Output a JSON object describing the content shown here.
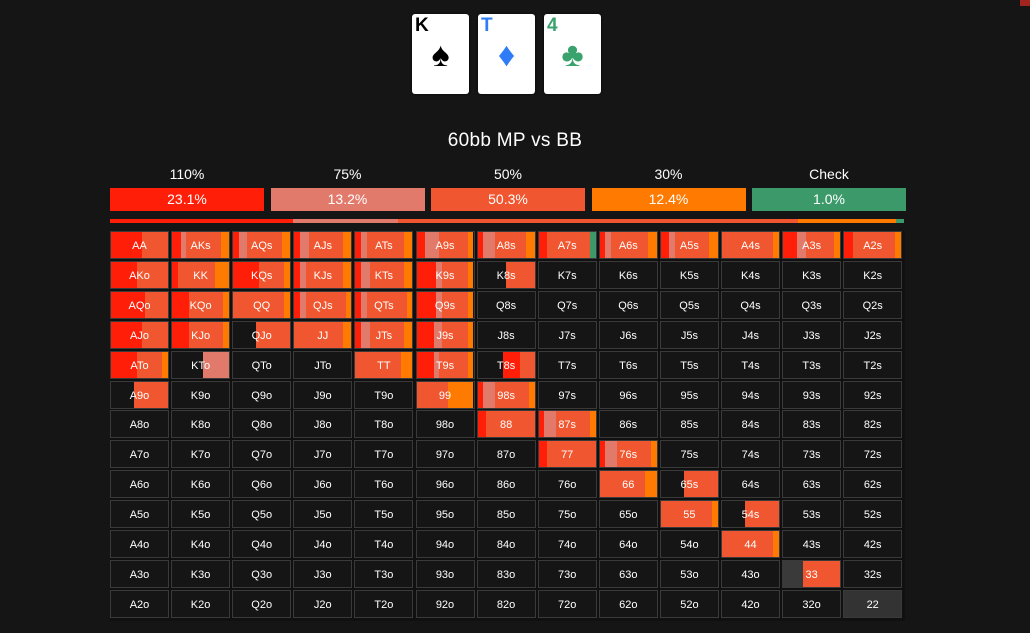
{
  "board": {
    "cards": [
      {
        "rank": "K",
        "suit_icon": "spade-icon",
        "suit_glyph": "♠",
        "color": "#000000"
      },
      {
        "rank": "T",
        "suit_icon": "diamond-icon",
        "suit_glyph": "♦",
        "color": "#2f7cf6"
      },
      {
        "rank": "4",
        "suit_icon": "club-icon",
        "suit_glyph": "♣",
        "color": "#3aa26c"
      }
    ]
  },
  "title": "60bb MP vs BB",
  "actions": [
    {
      "label": "110%",
      "freq": "23.1%",
      "color": "#ff1e08"
    },
    {
      "label": "75%",
      "freq": "13.2%",
      "color": "#e27a6c"
    },
    {
      "label": "50%",
      "freq": "50.3%",
      "color": "#f0562f"
    },
    {
      "label": "30%",
      "freq": "12.4%",
      "color": "#ff7a00"
    },
    {
      "label": "Check",
      "freq": "1.0%",
      "color": "#3c9a6a"
    }
  ],
  "grid": {
    "rows": [
      [
        "AA",
        "AKs",
        "AQs",
        "AJs",
        "ATs",
        "A9s",
        "A8s",
        "A7s",
        "A6s",
        "A5s",
        "A4s",
        "A3s",
        "A2s"
      ],
      [
        "AKo",
        "KK",
        "KQs",
        "KJs",
        "KTs",
        "K9s",
        "K8s",
        "K7s",
        "K6s",
        "K5s",
        "K4s",
        "K3s",
        "K2s"
      ],
      [
        "AQo",
        "KQo",
        "QQ",
        "QJs",
        "QTs",
        "Q9s",
        "Q8s",
        "Q7s",
        "Q6s",
        "Q5s",
        "Q4s",
        "Q3s",
        "Q2s"
      ],
      [
        "AJo",
        "KJo",
        "QJo",
        "JJ",
        "JTs",
        "J9s",
        "J8s",
        "J7s",
        "J6s",
        "J5s",
        "J4s",
        "J3s",
        "J2s"
      ],
      [
        "ATo",
        "KTo",
        "QTo",
        "JTo",
        "TT",
        "T9s",
        "T8s",
        "T7s",
        "T6s",
        "T5s",
        "T4s",
        "T3s",
        "T2s"
      ],
      [
        "A9o",
        "K9o",
        "Q9o",
        "J9o",
        "T9o",
        "99",
        "98s",
        "97s",
        "96s",
        "95s",
        "94s",
        "93s",
        "92s"
      ],
      [
        "A8o",
        "K8o",
        "Q8o",
        "J8o",
        "T8o",
        "98o",
        "88",
        "87s",
        "86s",
        "85s",
        "84s",
        "83s",
        "82s"
      ],
      [
        "A7o",
        "K7o",
        "Q7o",
        "J7o",
        "T7o",
        "97o",
        "87o",
        "77",
        "76s",
        "75s",
        "74s",
        "73s",
        "72s"
      ],
      [
        "A6o",
        "K6o",
        "Q6o",
        "J6o",
        "T6o",
        "96o",
        "86o",
        "76o",
        "66",
        "65s",
        "64s",
        "63s",
        "62s"
      ],
      [
        "A5o",
        "K5o",
        "Q5o",
        "J5o",
        "T5o",
        "95o",
        "85o",
        "75o",
        "65o",
        "55",
        "54s",
        "53s",
        "52s"
      ],
      [
        "A4o",
        "K4o",
        "Q4o",
        "J4o",
        "T4o",
        "94o",
        "84o",
        "74o",
        "64o",
        "54o",
        "44",
        "43s",
        "42s"
      ],
      [
        "A3o",
        "K3o",
        "Q3o",
        "J3o",
        "T3o",
        "93o",
        "83o",
        "73o",
        "63o",
        "53o",
        "43o",
        "33",
        "32s"
      ],
      [
        "A2o",
        "K2o",
        "Q2o",
        "J2o",
        "T2o",
        "92o",
        "82o",
        "72o",
        "62o",
        "52o",
        "42o",
        "32o",
        "22"
      ]
    ],
    "mixes": {
      "AA": [
        [
          "#ff1e08",
          0.55
        ],
        [
          "#f0562f",
          0.45
        ]
      ],
      "AKs": [
        [
          "#ff1e08",
          0.15
        ],
        [
          "#e27a6c",
          0.1
        ],
        [
          "#f0562f",
          0.6
        ],
        [
          "#ff7a00",
          0.15
        ]
      ],
      "AQs": [
        [
          "#ff1e08",
          0.1
        ],
        [
          "#e27a6c",
          0.15
        ],
        [
          "#f0562f",
          0.6
        ],
        [
          "#ff7a00",
          0.15
        ]
      ],
      "AJs": [
        [
          "#ff1e08",
          0.1
        ],
        [
          "#e27a6c",
          0.15
        ],
        [
          "#f0562f",
          0.6
        ],
        [
          "#ff7a00",
          0.15
        ]
      ],
      "ATs": [
        [
          "#ff1e08",
          0.1
        ],
        [
          "#e27a6c",
          0.1
        ],
        [
          "#f0562f",
          0.65
        ],
        [
          "#ff7a00",
          0.15
        ]
      ],
      "A9s": [
        [
          "#ff1e08",
          0.15
        ],
        [
          "#e27a6c",
          0.25
        ],
        [
          "#f0562f",
          0.5
        ],
        [
          "#ff7a00",
          0.1
        ]
      ],
      "A8s": [
        [
          "#ff1e08",
          0.1
        ],
        [
          "#e27a6c",
          0.2
        ],
        [
          "#f0562f",
          0.55
        ],
        [
          "#ff7a00",
          0.15
        ]
      ],
      "A7s": [
        [
          "#ff1e08",
          0.15
        ],
        [
          "#f0562f",
          0.75
        ],
        [
          "#3c9a6a",
          0.1
        ]
      ],
      "A6s": [
        [
          "#ff1e08",
          0.1
        ],
        [
          "#e27a6c",
          0.1
        ],
        [
          "#f0562f",
          0.65
        ],
        [
          "#ff7a00",
          0.15
        ]
      ],
      "A5s": [
        [
          "#ff1e08",
          0.15
        ],
        [
          "#e27a6c",
          0.1
        ],
        [
          "#f0562f",
          0.6
        ],
        [
          "#ff7a00",
          0.15
        ]
      ],
      "A4s": [
        [
          "#f0562f",
          0.9
        ],
        [
          "#ff7a00",
          0.1
        ]
      ],
      "A3s": [
        [
          "#ff1e08",
          0.25
        ],
        [
          "#e27a6c",
          0.15
        ],
        [
          "#f0562f",
          0.5
        ],
        [
          "#ff7a00",
          0.1
        ]
      ],
      "A2s": [
        [
          "#ff1e08",
          0.15
        ],
        [
          "#f0562f",
          0.75
        ],
        [
          "#ff7a00",
          0.1
        ]
      ],
      "AKo": [
        [
          "#ff1e08",
          0.45
        ],
        [
          "#f0562f",
          0.55
        ]
      ],
      "KK": [
        [
          "#ff1e08",
          0.1
        ],
        [
          "#f0562f",
          0.65
        ],
        [
          "#ff7a00",
          0.25
        ]
      ],
      "KQs": [
        [
          "#ff1e08",
          0.45
        ],
        [
          "#f0562f",
          0.45
        ],
        [
          "#ff7a00",
          0.1
        ]
      ],
      "KJs": [
        [
          "#ff1e08",
          0.1
        ],
        [
          "#e27a6c",
          0.1
        ],
        [
          "#f0562f",
          0.65
        ],
        [
          "#ff7a00",
          0.15
        ]
      ],
      "KTs": [
        [
          "#ff1e08",
          0.1
        ],
        [
          "#e27a6c",
          0.15
        ],
        [
          "#f0562f",
          0.6
        ],
        [
          "#ff7a00",
          0.15
        ]
      ],
      "K9s": [
        [
          "#ff1e08",
          0.35
        ],
        [
          "#e27a6c",
          0.1
        ],
        [
          "#f0562f",
          0.45
        ],
        [
          "#ff7a00",
          0.1
        ]
      ],
      "K8s": [
        [
          "#151515",
          0.5
        ],
        [
          "#f0562f",
          0.5
        ]
      ],
      "AQo": [
        [
          "#ff1e08",
          0.6
        ],
        [
          "#f0562f",
          0.4
        ]
      ],
      "KQo": [
        [
          "#ff1e08",
          0.3
        ],
        [
          "#f0562f",
          0.6
        ],
        [
          "#ff7a00",
          0.1
        ]
      ],
      "QQ": [
        [
          "#f0562f",
          0.9
        ],
        [
          "#ff7a00",
          0.1
        ]
      ],
      "QJs": [
        [
          "#ff1e08",
          0.1
        ],
        [
          "#e27a6c",
          0.1
        ],
        [
          "#f0562f",
          0.7
        ],
        [
          "#ff7a00",
          0.1
        ]
      ],
      "QTs": [
        [
          "#ff1e08",
          0.1
        ],
        [
          "#e27a6c",
          0.1
        ],
        [
          "#f0562f",
          0.7
        ],
        [
          "#ff7a00",
          0.1
        ]
      ],
      "Q9s": [
        [
          "#ff1e08",
          0.35
        ],
        [
          "#e27a6c",
          0.1
        ],
        [
          "#f0562f",
          0.45
        ],
        [
          "#ff7a00",
          0.1
        ]
      ],
      "AJo": [
        [
          "#ff1e08",
          0.55
        ],
        [
          "#f0562f",
          0.45
        ]
      ],
      "KJo": [
        [
          "#ff1e08",
          0.3
        ],
        [
          "#f0562f",
          0.6
        ],
        [
          "#ff7a00",
          0.1
        ]
      ],
      "QJo": [
        [
          "#151515",
          0.4
        ],
        [
          "#f0562f",
          0.6
        ]
      ],
      "JJ": [
        [
          "#f0562f",
          0.85
        ],
        [
          "#ff7a00",
          0.15
        ]
      ],
      "JTs": [
        [
          "#ff1e08",
          0.1
        ],
        [
          "#e27a6c",
          0.15
        ],
        [
          "#f0562f",
          0.6
        ],
        [
          "#ff7a00",
          0.15
        ]
      ],
      "J9s": [
        [
          "#ff1e08",
          0.3
        ],
        [
          "#e27a6c",
          0.15
        ],
        [
          "#f0562f",
          0.45
        ],
        [
          "#ff7a00",
          0.1
        ]
      ],
      "ATo": [
        [
          "#ff1e08",
          0.45
        ],
        [
          "#f0562f",
          0.45
        ],
        [
          "#ff7a00",
          0.1
        ]
      ],
      "KTo": [
        [
          "#151515",
          0.55
        ],
        [
          "#e27a6c",
          0.45
        ]
      ],
      "TT": [
        [
          "#f0562f",
          0.8
        ],
        [
          "#ff7a00",
          0.2
        ]
      ],
      "T9s": [
        [
          "#ff1e08",
          0.3
        ],
        [
          "#e27a6c",
          0.1
        ],
        [
          "#f0562f",
          0.5
        ],
        [
          "#ff7a00",
          0.1
        ]
      ],
      "T8s": [
        [
          "#151515",
          0.45
        ],
        [
          "#ff1e08",
          0.3
        ],
        [
          "#f0562f",
          0.25
        ]
      ],
      "A9o": [
        [
          "#151515",
          0.4
        ],
        [
          "#f0562f",
          0.6
        ]
      ],
      "99": [
        [
          "#f0562f",
          0.55
        ],
        [
          "#ff7a00",
          0.45
        ]
      ],
      "98s": [
        [
          "#ff1e08",
          0.1
        ],
        [
          "#e27a6c",
          0.2
        ],
        [
          "#f0562f",
          0.6
        ],
        [
          "#ff7a00",
          0.1
        ]
      ],
      "88": [
        [
          "#ff1e08",
          0.15
        ],
        [
          "#f0562f",
          0.85
        ]
      ],
      "87s": [
        [
          "#ff1e08",
          0.1
        ],
        [
          "#e27a6c",
          0.2
        ],
        [
          "#f0562f",
          0.6
        ],
        [
          "#ff7a00",
          0.1
        ]
      ],
      "77": [
        [
          "#ff1e08",
          0.15
        ],
        [
          "#f0562f",
          0.85
        ]
      ],
      "76s": [
        [
          "#ff1e08",
          0.1
        ],
        [
          "#e27a6c",
          0.2
        ],
        [
          "#f0562f",
          0.6
        ],
        [
          "#ff7a00",
          0.1
        ]
      ],
      "66": [
        [
          "#f0562f",
          0.8
        ],
        [
          "#ff7a00",
          0.2
        ]
      ],
      "65s": [
        [
          "#151515",
          0.4
        ],
        [
          "#f0562f",
          0.6
        ]
      ],
      "55": [
        [
          "#f0562f",
          0.9
        ],
        [
          "#ff7a00",
          0.1
        ]
      ],
      "54s": [
        [
          "#151515",
          0.4
        ],
        [
          "#f0562f",
          0.6
        ]
      ],
      "44": [
        [
          "#f0562f",
          0.9
        ],
        [
          "#ff7a00",
          0.1
        ]
      ],
      "33": [
        [
          "#3a3a3a",
          0.35
        ],
        [
          "#f0562f",
          0.65
        ]
      ],
      "22": [
        [
          "#333333",
          1.0
        ]
      ]
    }
  }
}
